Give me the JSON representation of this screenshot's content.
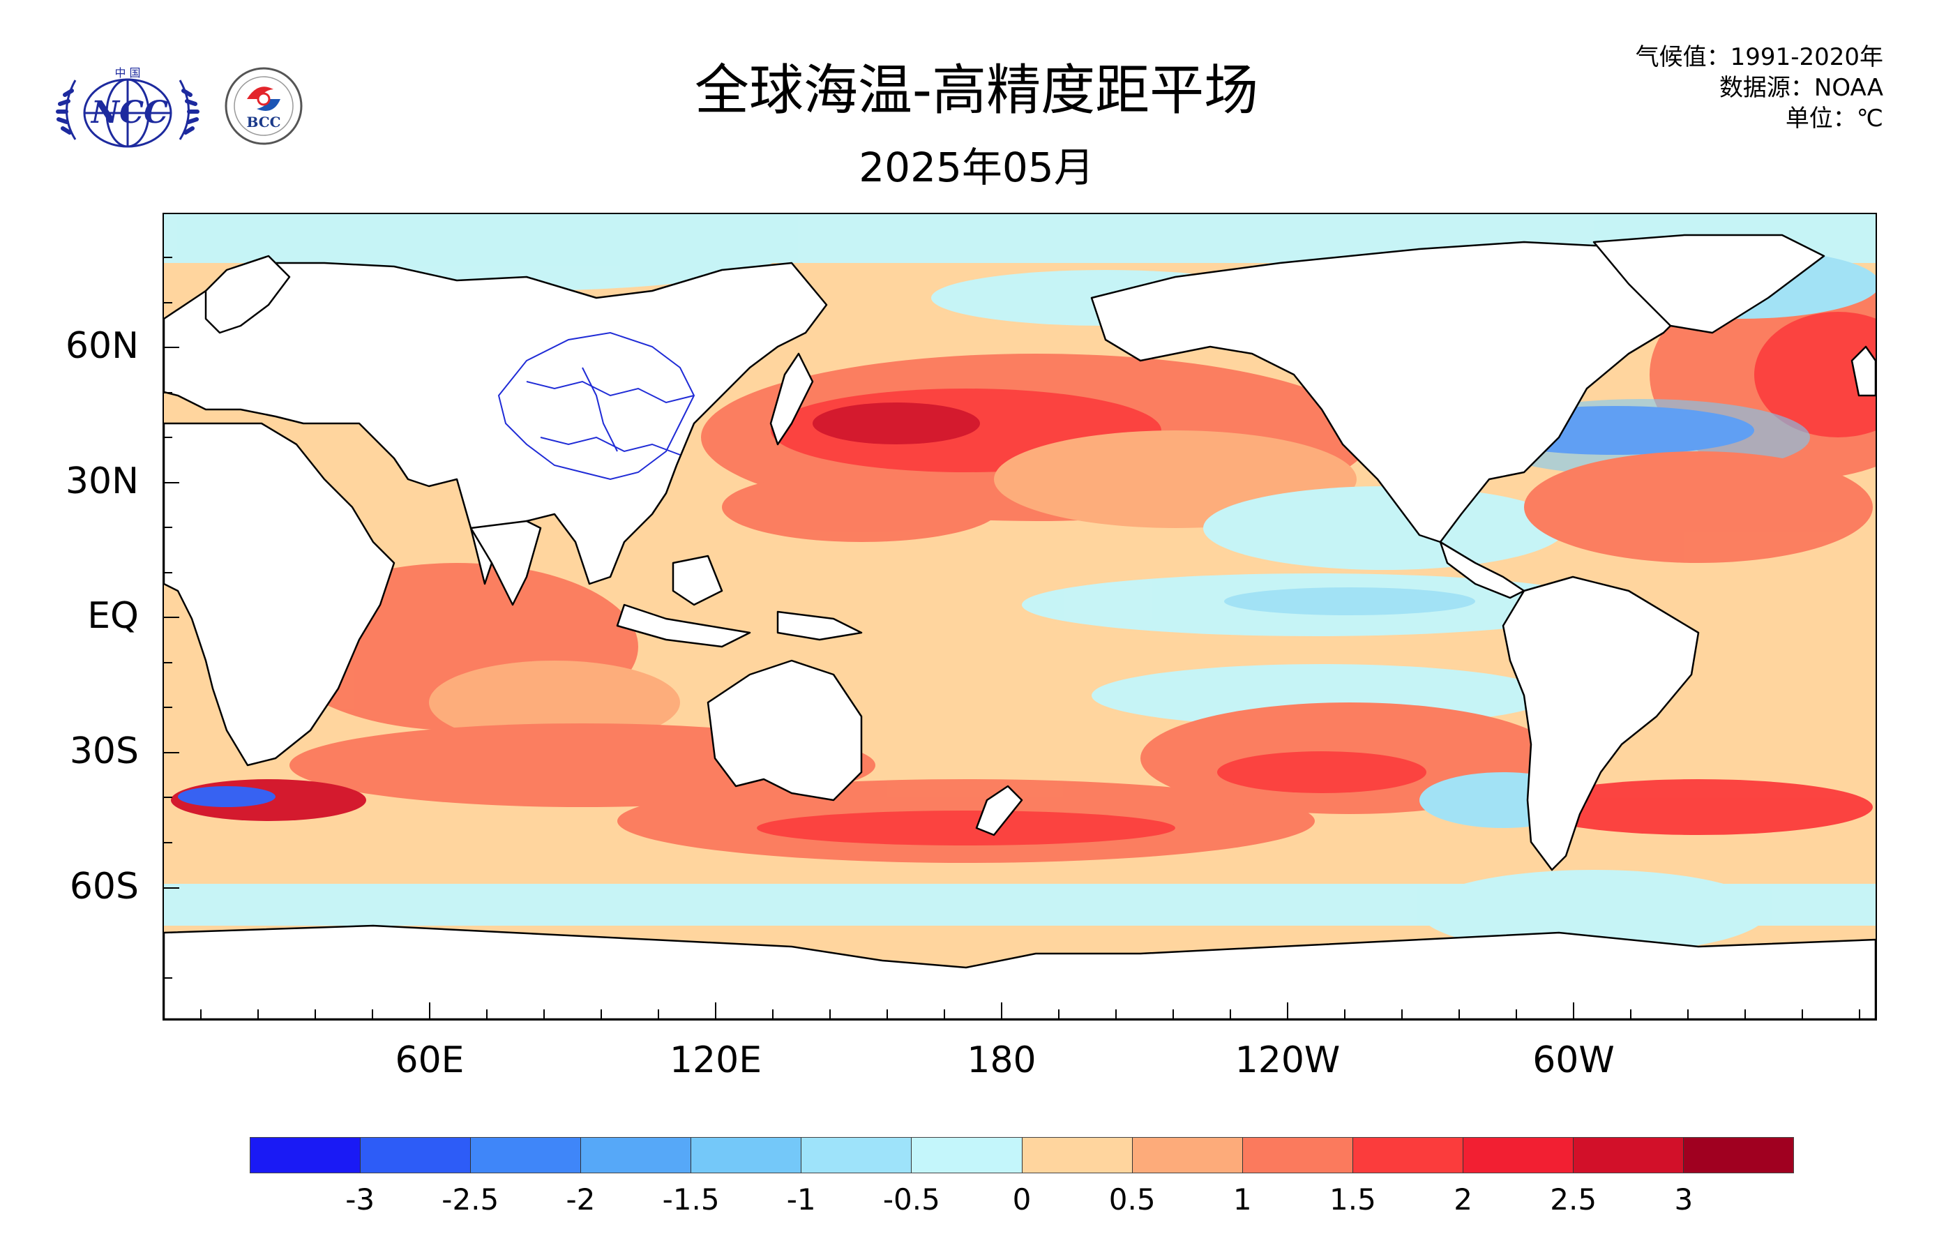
{
  "header": {
    "title": "全球海温-高精度距平场",
    "subtitle": "2025年05月",
    "info_lines": [
      "气候值：1991-2020年",
      "数据源：NOAA",
      "单位：℃"
    ]
  },
  "logos": {
    "ncc": {
      "label": "NCC",
      "top_text": "中 国"
    },
    "bcc": {
      "label": "BCC"
    }
  },
  "map": {
    "lat_labels": [
      "60N",
      "30N",
      "EQ",
      "30S",
      "60S"
    ],
    "lon_labels": [
      "60E",
      "120E",
      "180",
      "120W",
      "60W"
    ],
    "ocean_base_color": "#ffd59e",
    "land_color": "#ffffff",
    "coast_color": "#000000",
    "river_color": "#1f2bd6"
  },
  "colorbar": {
    "colors": [
      "#1a1af5",
      "#2d5cf7",
      "#3f86f9",
      "#56a8f8",
      "#74c8f9",
      "#9ee3fa",
      "#c4f6fb",
      "#ffd59e",
      "#fdab7a",
      "#fb7a5d",
      "#fb3c3c",
      "#f21f32",
      "#d21029",
      "#a00020"
    ],
    "labels": [
      "-3",
      "-2.5",
      "-2",
      "-1.5",
      "-1",
      "-0.5",
      "0",
      "0.5",
      "1",
      "1.5",
      "2",
      "2.5",
      "3"
    ]
  }
}
